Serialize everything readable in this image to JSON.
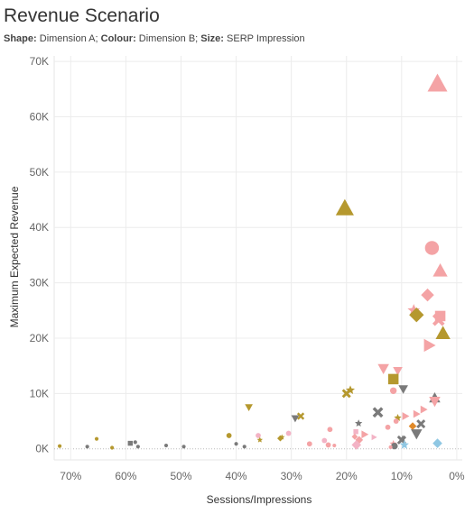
{
  "title": "Revenue Scenario",
  "subtitle": {
    "shape_key": "Shape:",
    "shape_val": "Dimension A;",
    "colour_key": "Colour:",
    "colour_val": "Dimension B;",
    "size_key": "Size:",
    "size_val": "SERP Impression"
  },
  "colors": {
    "pink": "#f4a3a5",
    "gold": "#b5982e",
    "grey": "#7a7a7a",
    "blue": "#8fc7e3",
    "orange": "#e08a2a",
    "lightpink": "#f3b3c5"
  },
  "chart_data": {
    "type": "scatter",
    "xlabel": "Sessions/Impressions",
    "ylabel": "Maximum Expected Revenue",
    "xlim": [
      0.73,
      -0.01
    ],
    "ylim": [
      -2000,
      71000
    ],
    "x_reversed": true,
    "x_ticks": [
      0.7,
      0.6,
      0.5,
      0.4,
      0.3,
      0.2,
      0.1,
      0.0
    ],
    "x_tick_labels": [
      "70%",
      "60%",
      "50%",
      "40%",
      "30%",
      "20%",
      "10%",
      "0%"
    ],
    "y_ticks": [
      0,
      10000,
      20000,
      30000,
      40000,
      50000,
      60000,
      70000
    ],
    "y_tick_labels": [
      "0K",
      "10K",
      "20K",
      "30K",
      "40K",
      "50K",
      "60K",
      "70K"
    ],
    "grid": true,
    "points": [
      {
        "x": 0.035,
        "y": 66000,
        "shape": "triangle",
        "color": "pink",
        "size": 10
      },
      {
        "x": 0.203,
        "y": 43500,
        "shape": "triangle",
        "color": "gold",
        "size": 9
      },
      {
        "x": 0.045,
        "y": 36300,
        "shape": "circle",
        "color": "pink",
        "size": 8
      },
      {
        "x": 0.03,
        "y": 32200,
        "shape": "triangle",
        "color": "pink",
        "size": 7
      },
      {
        "x": 0.053,
        "y": 27800,
        "shape": "diamond",
        "color": "pink",
        "size": 6
      },
      {
        "x": 0.078,
        "y": 25000,
        "shape": "star",
        "color": "pink",
        "size": 6
      },
      {
        "x": 0.073,
        "y": 24200,
        "shape": "diamond",
        "color": "gold",
        "size": 7
      },
      {
        "x": 0.03,
        "y": 24000,
        "shape": "square",
        "color": "pink",
        "size": 6
      },
      {
        "x": 0.033,
        "y": 23300,
        "shape": "x",
        "color": "pink",
        "size": 6
      },
      {
        "x": 0.025,
        "y": 20900,
        "shape": "triangle",
        "color": "gold",
        "size": 7
      },
      {
        "x": 0.05,
        "y": 18700,
        "shape": "triangle-right",
        "color": "pink",
        "size": 6
      },
      {
        "x": 0.133,
        "y": 14500,
        "shape": "triangle-down",
        "color": "pink",
        "size": 5
      },
      {
        "x": 0.107,
        "y": 14100,
        "shape": "triangle-down",
        "color": "pink",
        "size": 4
      },
      {
        "x": 0.115,
        "y": 12600,
        "shape": "square",
        "color": "gold",
        "size": 6
      },
      {
        "x": 0.097,
        "y": 10800,
        "shape": "triangle-down",
        "color": "grey",
        "size": 4
      },
      {
        "x": 0.115,
        "y": 10500,
        "shape": "circle",
        "color": "pink",
        "size": 3
      },
      {
        "x": 0.193,
        "y": 10600,
        "shape": "star",
        "color": "gold",
        "size": 4
      },
      {
        "x": 0.2,
        "y": 10000,
        "shape": "x",
        "color": "gold",
        "size": 4
      },
      {
        "x": 0.04,
        "y": 9200,
        "shape": "triangle",
        "color": "grey",
        "size": 5
      },
      {
        "x": 0.04,
        "y": 8600,
        "shape": "triangle-down",
        "color": "pink",
        "size": 5
      },
      {
        "x": 0.06,
        "y": 7100,
        "shape": "triangle-right",
        "color": "pink",
        "size": 3
      },
      {
        "x": 0.377,
        "y": 7500,
        "shape": "triangle-down",
        "color": "gold",
        "size": 3
      },
      {
        "x": 0.143,
        "y": 6600,
        "shape": "x",
        "color": "grey",
        "size": 5
      },
      {
        "x": 0.073,
        "y": 6300,
        "shape": "triangle-right",
        "color": "pink",
        "size": 3
      },
      {
        "x": 0.283,
        "y": 5900,
        "shape": "x",
        "color": "gold",
        "size": 3
      },
      {
        "x": 0.107,
        "y": 5600,
        "shape": "star",
        "color": "gold",
        "size": 3
      },
      {
        "x": 0.093,
        "y": 5900,
        "shape": "triangle-right",
        "color": "pink",
        "size": 3
      },
      {
        "x": 0.293,
        "y": 5500,
        "shape": "triangle-down",
        "color": "grey",
        "size": 3
      },
      {
        "x": 0.11,
        "y": 5000,
        "shape": "circle",
        "color": "pink",
        "size": 2
      },
      {
        "x": 0.178,
        "y": 4600,
        "shape": "star",
        "color": "grey",
        "size": 3
      },
      {
        "x": 0.065,
        "y": 4500,
        "shape": "x",
        "color": "grey",
        "size": 4
      },
      {
        "x": 0.08,
        "y": 4100,
        "shape": "diamond",
        "color": "orange",
        "size": 3
      },
      {
        "x": 0.125,
        "y": 3900,
        "shape": "circle",
        "color": "pink",
        "size": 2
      },
      {
        "x": 0.23,
        "y": 3500,
        "shape": "circle",
        "color": "pink",
        "size": 2
      },
      {
        "x": 0.183,
        "y": 3100,
        "shape": "square",
        "color": "lightpink",
        "size": 2
      },
      {
        "x": 0.305,
        "y": 2800,
        "shape": "circle",
        "color": "lightpink",
        "size": 2
      },
      {
        "x": 0.073,
        "y": 2700,
        "shape": "triangle-down",
        "color": "grey",
        "size": 5
      },
      {
        "x": 0.167,
        "y": 2600,
        "shape": "triangle-right",
        "color": "pink",
        "size": 3
      },
      {
        "x": 0.413,
        "y": 2400,
        "shape": "circle",
        "color": "gold",
        "size": 2
      },
      {
        "x": 0.36,
        "y": 2400,
        "shape": "circle",
        "color": "lightpink",
        "size": 2
      },
      {
        "x": 0.185,
        "y": 2200,
        "shape": "diamond",
        "color": "pink",
        "size": 2
      },
      {
        "x": 0.317,
        "y": 2100,
        "shape": "star",
        "color": "gold",
        "size": 2
      },
      {
        "x": 0.15,
        "y": 2100,
        "shape": "triangle-right",
        "color": "lightpink",
        "size": 2
      },
      {
        "x": 0.098,
        "y": 1800,
        "shape": "star",
        "color": "grey",
        "size": 3
      },
      {
        "x": 0.653,
        "y": 1800,
        "shape": "circle",
        "color": "gold",
        "size": 1
      },
      {
        "x": 0.32,
        "y": 1900,
        "shape": "diamond",
        "color": "gold",
        "size": 2
      },
      {
        "x": 0.1,
        "y": 1600,
        "shape": "x",
        "color": "grey",
        "size": 4
      },
      {
        "x": 0.357,
        "y": 1600,
        "shape": "star",
        "color": "gold",
        "size": 2
      },
      {
        "x": 0.177,
        "y": 1600,
        "shape": "diamond",
        "color": "pink",
        "size": 3
      },
      {
        "x": 0.24,
        "y": 1500,
        "shape": "circle",
        "color": "lightpink",
        "size": 2
      },
      {
        "x": 0.583,
        "y": 1200,
        "shape": "circle",
        "color": "grey",
        "size": 1
      },
      {
        "x": 0.592,
        "y": 1000,
        "shape": "square",
        "color": "grey",
        "size": 2
      },
      {
        "x": 0.115,
        "y": 900,
        "shape": "star",
        "color": "pink",
        "size": 3
      },
      {
        "x": 0.035,
        "y": 1000,
        "shape": "diamond",
        "color": "blue",
        "size": 4
      },
      {
        "x": 0.267,
        "y": 900,
        "shape": "circle",
        "color": "pink",
        "size": 2
      },
      {
        "x": 0.4,
        "y": 900,
        "shape": "circle",
        "color": "grey",
        "size": 1
      },
      {
        "x": 0.182,
        "y": 700,
        "shape": "diamond",
        "color": "lightpink",
        "size": 4
      },
      {
        "x": 0.233,
        "y": 700,
        "shape": "circle",
        "color": "pink",
        "size": 2
      },
      {
        "x": 0.095,
        "y": 700,
        "shape": "star",
        "color": "blue",
        "size": 4
      },
      {
        "x": 0.222,
        "y": 600,
        "shape": "circle",
        "color": "pink",
        "size": 1
      },
      {
        "x": 0.527,
        "y": 600,
        "shape": "circle",
        "color": "grey",
        "size": 1
      },
      {
        "x": 0.113,
        "y": 500,
        "shape": "circle",
        "color": "grey",
        "size": 3
      },
      {
        "x": 0.72,
        "y": 500,
        "shape": "circle",
        "color": "gold",
        "size": 1
      },
      {
        "x": 0.67,
        "y": 400,
        "shape": "circle",
        "color": "grey",
        "size": 1
      },
      {
        "x": 0.578,
        "y": 400,
        "shape": "circle",
        "color": "grey",
        "size": 1
      },
      {
        "x": 0.495,
        "y": 400,
        "shape": "circle",
        "color": "grey",
        "size": 1
      },
      {
        "x": 0.385,
        "y": 400,
        "shape": "circle",
        "color": "grey",
        "size": 1
      },
      {
        "x": 0.12,
        "y": 300,
        "shape": "circle",
        "color": "pink",
        "size": 1
      },
      {
        "x": 0.625,
        "y": 200,
        "shape": "circle",
        "color": "gold",
        "size": 1
      }
    ]
  }
}
